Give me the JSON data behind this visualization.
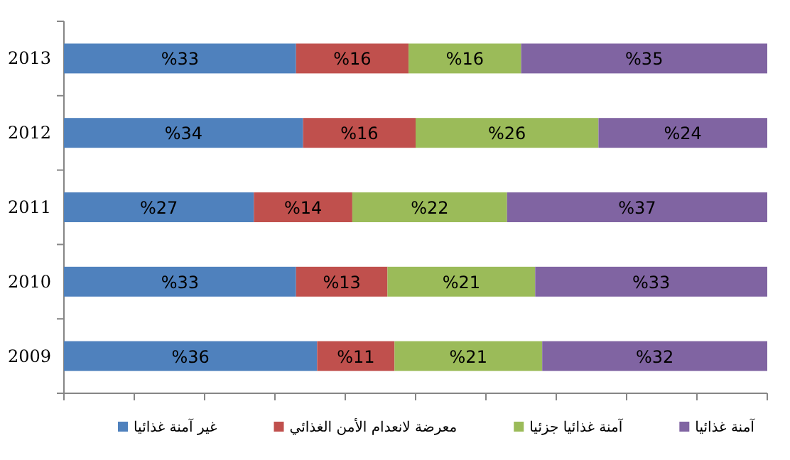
{
  "chart_data": {
    "type": "bar",
    "orientation": "horizontal",
    "stacked": true,
    "categories": [
      "2013",
      "2012",
      "2011",
      "2010",
      "2009"
    ],
    "series": [
      {
        "name": "غير آمنة غذائيا",
        "color": "#4f81bd",
        "values": [
          33,
          34,
          27,
          33,
          36
        ],
        "value_labels": [
          "%33",
          "%34",
          "%27",
          "%33",
          "%36"
        ]
      },
      {
        "name": "معرضة لانعدام الأمن الغذائي",
        "color": "#c0504d",
        "values": [
          16,
          16,
          14,
          13,
          11
        ],
        "value_labels": [
          "%16",
          "%16",
          "%14",
          "%13",
          "%11"
        ]
      },
      {
        "name": "آمنة غذائيا جزئيا",
        "color": "#9bbb59",
        "values": [
          16,
          26,
          22,
          21,
          21
        ],
        "value_labels": [
          "%16",
          "%26",
          "%22",
          "%21",
          "%21"
        ]
      },
      {
        "name": "آمنة غذائيا",
        "color": "#8064a2",
        "values": [
          35,
          24,
          37,
          33,
          32
        ],
        "value_labels": [
          "%35",
          "%24",
          "%37",
          "%33",
          "%32"
        ]
      }
    ],
    "xlim": [
      0,
      100
    ],
    "xticks": [
      {
        "value": 0,
        "label": null
      },
      {
        "value": 10,
        "label": null
      },
      {
        "value": 20,
        "label": null
      },
      {
        "value": 30,
        "label": null
      },
      {
        "value": 40,
        "label": null
      },
      {
        "value": 50,
        "label": null
      },
      {
        "value": 60,
        "label": null
      },
      {
        "value": 70,
        "label": null
      },
      {
        "value": 80,
        "label": null
      },
      {
        "value": 90,
        "label": null
      },
      {
        "value": 100,
        "label": null
      }
    ],
    "tick_labels": "y",
    "grid": false,
    "legend": "bottom"
  }
}
